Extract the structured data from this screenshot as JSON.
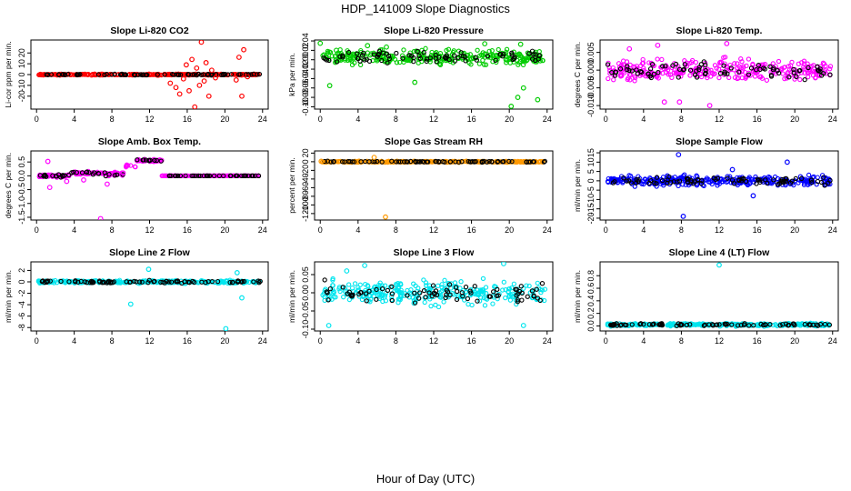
{
  "figure": {
    "title": "HDP_141009  Slope Diagnostics",
    "xlabel": "Hour of Day (UTC)"
  },
  "chart_data": [
    {
      "type": "scatter",
      "title": "Slope Li-820 CO2",
      "ylabel": "Li-cor ppm per min.",
      "xlim": [
        -0.6,
        24.6
      ],
      "ylim": [
        -32,
        32
      ],
      "yticks": [
        -20,
        -10,
        0,
        10,
        20
      ],
      "xticks": [
        0,
        4,
        8,
        12,
        16,
        20,
        24
      ],
      "color": "#ff0000",
      "base": 0,
      "spread": 0.8,
      "scatter_points": [
        [
          14.2,
          -8
        ],
        [
          14.8,
          -12
        ],
        [
          15.2,
          -18
        ],
        [
          15.6,
          -4
        ],
        [
          15.9,
          9
        ],
        [
          16.2,
          -15
        ],
        [
          16.5,
          14
        ],
        [
          16.8,
          -30
        ],
        [
          17.0,
          6
        ],
        [
          17.3,
          -10
        ],
        [
          17.5,
          30
        ],
        [
          17.8,
          -6
        ],
        [
          18.0,
          11
        ],
        [
          18.3,
          -20
        ],
        [
          18.6,
          4
        ],
        [
          19.0,
          -3
        ],
        [
          21.2,
          -5
        ],
        [
          21.5,
          16
        ],
        [
          21.8,
          -20
        ],
        [
          22.0,
          23
        ],
        [
          22.4,
          -2
        ]
      ]
    },
    {
      "type": "scatter",
      "title": "Slope Li-820 Pressure",
      "ylabel": "kPa per min.",
      "xlim": [
        -0.6,
        24.6
      ],
      "ylim": [
        -0.105,
        0.042
      ],
      "yticks": [
        -0.1,
        -0.08,
        -0.06,
        -0.04,
        -0.02,
        0.0,
        0.02,
        0.04
      ],
      "xticks": [
        0,
        4,
        8,
        12,
        16,
        20,
        24
      ],
      "color": "#00cc00",
      "base": 0.005,
      "spread": 0.022,
      "scatter_points": [
        [
          0.0,
          0.035
        ],
        [
          1.0,
          -0.055
        ],
        [
          1.7,
          0.02
        ],
        [
          5.0,
          0.03
        ],
        [
          7.0,
          0.027
        ],
        [
          10.0,
          -0.048
        ],
        [
          17.4,
          0.034
        ],
        [
          20.2,
          -0.099
        ],
        [
          20.9,
          -0.08
        ],
        [
          21.2,
          0.033
        ],
        [
          21.5,
          -0.06
        ],
        [
          23.0,
          -0.085
        ]
      ]
    },
    {
      "type": "scatter",
      "title": "Slope Li-820 Temp.",
      "ylabel": "degrees C per min.",
      "xlim": [
        -0.6,
        24.6
      ],
      "ylim": [
        -0.011,
        0.0085
      ],
      "yticks": [
        -0.01,
        -0.005,
        0.0,
        0.005
      ],
      "xticks": [
        0,
        4,
        8,
        12,
        16,
        20,
        24
      ],
      "color": "#ff00ff",
      "base": 0.0,
      "spread": 0.0042,
      "scatter_points": [
        [
          2.5,
          0.006
        ],
        [
          5.5,
          0.007
        ],
        [
          6.2,
          -0.009
        ],
        [
          7.8,
          -0.009
        ],
        [
          11.0,
          -0.01
        ],
        [
          12.8,
          0.0075
        ]
      ]
    },
    {
      "type": "scatter",
      "title": "Slope Amb. Box Temp.",
      "ylabel": "degrees C per min.",
      "xlim": [
        -0.6,
        24.6
      ],
      "ylim": [
        -1.6,
        0.9
      ],
      "yticks": [
        -1.5,
        -1.0,
        -0.5,
        0.0,
        0.5
      ],
      "xticks": [
        0,
        4,
        8,
        12,
        16,
        20,
        24
      ],
      "color": "#ff00ff",
      "base_segments": [
        [
          0,
          3.5,
          0.0,
          0.08
        ],
        [
          3.5,
          7.3,
          0.1,
          0.09
        ],
        [
          7.3,
          9.5,
          0.06,
          0.1
        ],
        [
          9.5,
          10.5,
          0.35,
          0.08
        ],
        [
          10.5,
          13.3,
          0.55,
          0.06
        ],
        [
          13.3,
          24,
          0.0,
          0.0
        ]
      ],
      "scatter_points": [
        [
          1.2,
          0.52
        ],
        [
          1.4,
          -0.42
        ],
        [
          6.8,
          -1.55
        ],
        [
          3.2,
          -0.2
        ],
        [
          5.0,
          -0.15
        ],
        [
          7.5,
          -0.3
        ],
        [
          9.2,
          0.1
        ]
      ]
    },
    {
      "type": "scatter",
      "title": "Slope Gas Stream RH",
      "ylabel": "percent per min.",
      "xlim": [
        -0.6,
        24.6
      ],
      "ylim": [
        -135,
        25
      ],
      "yticks": [
        -120,
        -100,
        -80,
        -60,
        -40,
        -20,
        0,
        20
      ],
      "xticks": [
        0,
        4,
        8,
        12,
        16,
        20,
        24
      ],
      "color": "#ff9900",
      "base": 0,
      "spread": 2,
      "scatter_points": [
        [
          0.1,
          1
        ],
        [
          5.7,
          10
        ],
        [
          6.9,
          -128
        ]
      ]
    },
    {
      "type": "scatter",
      "title": "Slope Sample Flow",
      "ylabel": "ml/min per min.",
      "xlim": [
        -0.6,
        24.6
      ],
      "ylim": [
        -21,
        16
      ],
      "yticks": [
        -20,
        -15,
        -10,
        -5,
        0,
        5,
        10,
        15
      ],
      "xticks": [
        0,
        4,
        8,
        12,
        16,
        20,
        24
      ],
      "color": "#0000ff",
      "base": 0,
      "spread": 3.8,
      "scatter_points": [
        [
          7.7,
          14
        ],
        [
          8.2,
          -19
        ],
        [
          13.4,
          6
        ],
        [
          15.6,
          -8
        ],
        [
          19.2,
          10
        ]
      ]
    },
    {
      "type": "scatter",
      "title": "Slope Line 2 Flow",
      "ylabel": "ml/min per min.",
      "xlim": [
        -0.6,
        24.6
      ],
      "ylim": [
        -8.6,
        3.5
      ],
      "yticks": [
        -8,
        -6,
        -4,
        -2,
        0,
        2
      ],
      "xticks": [
        0,
        4,
        8,
        12,
        16,
        20,
        24
      ],
      "color": "#00e5ee",
      "base": 0,
      "spread": 0.35,
      "scatter_points": [
        [
          10.0,
          -3.9
        ],
        [
          11.9,
          2.2
        ],
        [
          20.1,
          -8.2
        ],
        [
          21.3,
          1.6
        ],
        [
          21.8,
          -2.8
        ]
      ]
    },
    {
      "type": "scatter",
      "title": "Slope Line 3 Flow",
      "ylabel": "ml/min per min.",
      "xlim": [
        -0.6,
        24.6
      ],
      "ylim": [
        -0.105,
        0.085
      ],
      "yticks": [
        -0.1,
        -0.05,
        0.0,
        0.05
      ],
      "xticks": [
        0,
        4,
        8,
        12,
        16,
        20,
        24
      ],
      "color": "#00e5ee",
      "base": 0.0,
      "spread": 0.045,
      "scatter_points": [
        [
          2.8,
          0.06
        ],
        [
          4.7,
          0.075
        ],
        [
          19.4,
          0.08
        ],
        [
          21.5,
          -0.09
        ],
        [
          0.9,
          -0.09
        ]
      ]
    },
    {
      "type": "scatter",
      "title": "Slope Line 4 (LT) Flow",
      "ylabel": "ml/min per min.",
      "xlim": [
        -0.6,
        24.6
      ],
      "ylim": [
        -0.08,
        1.02
      ],
      "yticks": [
        0.0,
        0.2,
        0.4,
        0.6,
        0.8
      ],
      "xticks": [
        0,
        4,
        8,
        12,
        16,
        20,
        24
      ],
      "color": "#00e5ee",
      "base": 0.02,
      "spread": 0.03,
      "scatter_points": [
        [
          12.0,
          0.97
        ]
      ]
    }
  ]
}
